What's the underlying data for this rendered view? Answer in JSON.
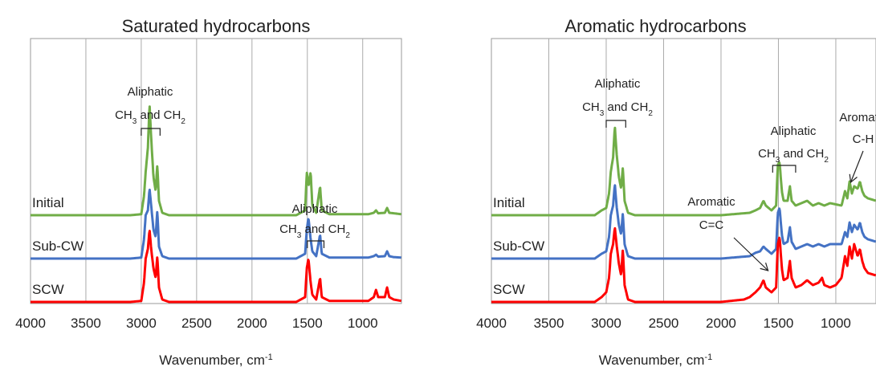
{
  "chart_data": [
    {
      "type": "line",
      "title": "Saturated hydrocarbons",
      "xlabel": "Wavenumber, cm",
      "xlabel_sup": "-1",
      "xlim": [
        4000,
        650
      ],
      "xticks": [
        4000,
        3500,
        3000,
        2500,
        2000,
        1500,
        1000
      ],
      "x_reversed": true,
      "y_axis_shown": false,
      "grid": "vertical",
      "legend": "labels at left of each trace",
      "series": [
        {
          "name": "Initial",
          "color": "#70ad47",
          "offset": 2.0,
          "points": [
            [
              4000,
              0
            ],
            [
              3100,
              0
            ],
            [
              3000,
              0.02
            ],
            [
              2975,
              0.4
            ],
            [
              2960,
              0.9
            ],
            [
              2940,
              1.4
            ],
            [
              2925,
              2.3
            ],
            [
              2910,
              1.6
            ],
            [
              2890,
              0.8
            ],
            [
              2870,
              0.5
            ],
            [
              2855,
              1.05
            ],
            [
              2840,
              0.3
            ],
            [
              2810,
              0.05
            ],
            [
              2750,
              0
            ],
            [
              1600,
              0
            ],
            [
              1520,
              0.1
            ],
            [
              1505,
              0.9
            ],
            [
              1490,
              0.6
            ],
            [
              1470,
              0.9
            ],
            [
              1455,
              0.2
            ],
            [
              1420,
              0.05
            ],
            [
              1385,
              0.6
            ],
            [
              1370,
              0.1
            ],
            [
              1300,
              0.02
            ],
            [
              950,
              0.02
            ],
            [
              900,
              0.05
            ],
            [
              880,
              0.1
            ],
            [
              860,
              0.04
            ],
            [
              800,
              0.05
            ],
            [
              780,
              0.15
            ],
            [
              760,
              0.05
            ],
            [
              720,
              0.04
            ],
            [
              650,
              0.02
            ]
          ]
        },
        {
          "name": "Sub-CW",
          "color": "#4472c4",
          "offset": 1.0,
          "points": [
            [
              4000,
              0
            ],
            [
              3100,
              0
            ],
            [
              3000,
              0.02
            ],
            [
              2975,
              0.4
            ],
            [
              2960,
              0.9
            ],
            [
              2940,
              1.0
            ],
            [
              2925,
              1.45
            ],
            [
              2910,
              1.1
            ],
            [
              2890,
              0.6
            ],
            [
              2870,
              0.45
            ],
            [
              2855,
              1.0
            ],
            [
              2840,
              0.25
            ],
            [
              2810,
              0.05
            ],
            [
              2750,
              0
            ],
            [
              1600,
              0
            ],
            [
              1520,
              0.1
            ],
            [
              1505,
              0.6
            ],
            [
              1490,
              0.85
            ],
            [
              1470,
              0.4
            ],
            [
              1455,
              0.15
            ],
            [
              1420,
              0.05
            ],
            [
              1385,
              0.5
            ],
            [
              1370,
              0.1
            ],
            [
              1300,
              0.02
            ],
            [
              950,
              0.02
            ],
            [
              900,
              0.05
            ],
            [
              880,
              0.08
            ],
            [
              860,
              0.04
            ],
            [
              800,
              0.05
            ],
            [
              780,
              0.15
            ],
            [
              760,
              0.05
            ],
            [
              720,
              0.03
            ],
            [
              650,
              0.02
            ]
          ]
        },
        {
          "name": "SCW",
          "color": "#ff0000",
          "offset": 0.0,
          "points": [
            [
              4000,
              0
            ],
            [
              3100,
              0
            ],
            [
              3000,
              0.02
            ],
            [
              2975,
              0.4
            ],
            [
              2960,
              0.9
            ],
            [
              2940,
              1.1
            ],
            [
              2925,
              1.5
            ],
            [
              2910,
              1.1
            ],
            [
              2890,
              0.7
            ],
            [
              2870,
              0.5
            ],
            [
              2855,
              0.95
            ],
            [
              2840,
              0.3
            ],
            [
              2810,
              0.05
            ],
            [
              2750,
              0
            ],
            [
              1600,
              0
            ],
            [
              1520,
              0.1
            ],
            [
              1505,
              0.7
            ],
            [
              1490,
              0.9
            ],
            [
              1470,
              0.4
            ],
            [
              1455,
              0.15
            ],
            [
              1420,
              0.05
            ],
            [
              1385,
              0.5
            ],
            [
              1370,
              0.1
            ],
            [
              1300,
              0.02
            ],
            [
              950,
              0.02
            ],
            [
              900,
              0.1
            ],
            [
              880,
              0.25
            ],
            [
              860,
              0.1
            ],
            [
              800,
              0.1
            ],
            [
              780,
              0.3
            ],
            [
              760,
              0.1
            ],
            [
              720,
              0.05
            ],
            [
              650,
              0.02
            ]
          ]
        }
      ],
      "annotations": [
        {
          "id": "aliphatic-1",
          "line1": "Aliphatic",
          "line2": {
            "a": "CH",
            "a_sub": "3",
            "b": " and CH",
            "b_sub": "2"
          },
          "bracket": [
            3000,
            2830
          ]
        },
        {
          "id": "aliphatic-2",
          "line1": "Aliphatic",
          "line2": {
            "a": "CH",
            "a_sub": "3",
            "b": " and CH",
            "b_sub": "2"
          },
          "bracket": [
            1500,
            1350
          ]
        }
      ]
    },
    {
      "type": "line",
      "title": "Aromatic hydrocarbons",
      "xlabel": "Wavenumber, cm",
      "xlabel_sup": "-1",
      "xlim": [
        4000,
        650
      ],
      "xticks": [
        4000,
        3500,
        3000,
        2500,
        2000,
        1500,
        1000
      ],
      "x_reversed": true,
      "y_axis_shown": false,
      "grid": "vertical",
      "legend": "labels at left of each trace",
      "series": [
        {
          "name": "Initial",
          "color": "#70ad47",
          "offset": 2.0,
          "points": [
            [
              4000,
              0
            ],
            [
              3100,
              0
            ],
            [
              3040,
              0.1
            ],
            [
              3000,
              0.15
            ],
            [
              2975,
              0.45
            ],
            [
              2960,
              0.9
            ],
            [
              2940,
              1.2
            ],
            [
              2925,
              1.85
            ],
            [
              2910,
              1.3
            ],
            [
              2890,
              0.8
            ],
            [
              2870,
              0.55
            ],
            [
              2855,
              1.0
            ],
            [
              2840,
              0.3
            ],
            [
              2810,
              0.05
            ],
            [
              2750,
              0
            ],
            [
              2000,
              0
            ],
            [
              1750,
              0.05
            ],
            [
              1700,
              0.1
            ],
            [
              1660,
              0.15
            ],
            [
              1630,
              0.3
            ],
            [
              1610,
              0.2
            ],
            [
              1560,
              0.1
            ],
            [
              1520,
              0.2
            ],
            [
              1505,
              1.05
            ],
            [
              1490,
              1.1
            ],
            [
              1470,
              0.5
            ],
            [
              1455,
              0.3
            ],
            [
              1420,
              0.3
            ],
            [
              1400,
              0.6
            ],
            [
              1385,
              0.3
            ],
            [
              1350,
              0.2
            ],
            [
              1300,
              0.25
            ],
            [
              1250,
              0.3
            ],
            [
              1200,
              0.2
            ],
            [
              1150,
              0.25
            ],
            [
              1100,
              0.2
            ],
            [
              1050,
              0.25
            ],
            [
              950,
              0.2
            ],
            [
              920,
              0.5
            ],
            [
              900,
              0.35
            ],
            [
              880,
              0.7
            ],
            [
              860,
              0.45
            ],
            [
              840,
              0.6
            ],
            [
              810,
              0.55
            ],
            [
              790,
              0.7
            ],
            [
              770,
              0.5
            ],
            [
              750,
              0.4
            ],
            [
              720,
              0.35
            ],
            [
              650,
              0.3
            ]
          ]
        },
        {
          "name": "Sub-CW",
          "color": "#4472c4",
          "offset": 1.0,
          "points": [
            [
              4000,
              0
            ],
            [
              3100,
              0
            ],
            [
              3040,
              0.1
            ],
            [
              3000,
              0.15
            ],
            [
              2975,
              0.45
            ],
            [
              2960,
              0.9
            ],
            [
              2940,
              1.1
            ],
            [
              2925,
              1.55
            ],
            [
              2910,
              1.1
            ],
            [
              2890,
              0.7
            ],
            [
              2870,
              0.5
            ],
            [
              2855,
              0.95
            ],
            [
              2840,
              0.3
            ],
            [
              2810,
              0.05
            ],
            [
              2750,
              0
            ],
            [
              2000,
              0
            ],
            [
              1750,
              0.05
            ],
            [
              1700,
              0.12
            ],
            [
              1660,
              0.15
            ],
            [
              1630,
              0.25
            ],
            [
              1610,
              0.2
            ],
            [
              1560,
              0.1
            ],
            [
              1520,
              0.2
            ],
            [
              1505,
              0.95
            ],
            [
              1490,
              1.05
            ],
            [
              1470,
              0.5
            ],
            [
              1455,
              0.3
            ],
            [
              1420,
              0.35
            ],
            [
              1400,
              0.65
            ],
            [
              1385,
              0.35
            ],
            [
              1350,
              0.2
            ],
            [
              1300,
              0.25
            ],
            [
              1250,
              0.3
            ],
            [
              1200,
              0.25
            ],
            [
              1150,
              0.3
            ],
            [
              1100,
              0.25
            ],
            [
              1050,
              0.3
            ],
            [
              950,
              0.3
            ],
            [
              920,
              0.55
            ],
            [
              900,
              0.45
            ],
            [
              880,
              0.75
            ],
            [
              860,
              0.55
            ],
            [
              840,
              0.7
            ],
            [
              810,
              0.6
            ],
            [
              790,
              0.75
            ],
            [
              770,
              0.55
            ],
            [
              750,
              0.45
            ],
            [
              720,
              0.4
            ],
            [
              650,
              0.35
            ]
          ]
        },
        {
          "name": "SCW",
          "color": "#ff0000",
          "offset": 0.0,
          "points": [
            [
              4000,
              0
            ],
            [
              3100,
              0
            ],
            [
              3040,
              0.1
            ],
            [
              3000,
              0.2
            ],
            [
              2975,
              0.5
            ],
            [
              2960,
              1.0
            ],
            [
              2940,
              1.2
            ],
            [
              2925,
              1.55
            ],
            [
              2910,
              1.2
            ],
            [
              2890,
              0.8
            ],
            [
              2870,
              0.55
            ],
            [
              2855,
              1.1
            ],
            [
              2840,
              0.35
            ],
            [
              2810,
              0.05
            ],
            [
              2750,
              0
            ],
            [
              2000,
              0
            ],
            [
              1800,
              0.05
            ],
            [
              1750,
              0.1
            ],
            [
              1700,
              0.2
            ],
            [
              1660,
              0.3
            ],
            [
              1630,
              0.45
            ],
            [
              1610,
              0.3
            ],
            [
              1560,
              0.2
            ],
            [
              1520,
              0.3
            ],
            [
              1505,
              1.2
            ],
            [
              1490,
              1.35
            ],
            [
              1470,
              0.7
            ],
            [
              1455,
              0.45
            ],
            [
              1420,
              0.5
            ],
            [
              1400,
              0.85
            ],
            [
              1385,
              0.5
            ],
            [
              1350,
              0.3
            ],
            [
              1300,
              0.35
            ],
            [
              1250,
              0.45
            ],
            [
              1200,
              0.35
            ],
            [
              1150,
              0.4
            ],
            [
              1120,
              0.5
            ],
            [
              1100,
              0.35
            ],
            [
              1050,
              0.3
            ],
            [
              1000,
              0.35
            ],
            [
              950,
              0.5
            ],
            [
              920,
              0.95
            ],
            [
              900,
              0.75
            ],
            [
              880,
              1.15
            ],
            [
              860,
              0.9
            ],
            [
              840,
              1.2
            ],
            [
              810,
              0.95
            ],
            [
              790,
              1.1
            ],
            [
              770,
              0.85
            ],
            [
              750,
              0.7
            ],
            [
              720,
              0.6
            ],
            [
              650,
              0.55
            ]
          ]
        }
      ],
      "annotations": [
        {
          "id": "aliphatic-1",
          "line1": "Aliphatic",
          "line2": {
            "a": "CH",
            "a_sub": "3",
            "b": " and CH",
            "b_sub": "2"
          },
          "bracket": [
            3000,
            2830
          ]
        },
        {
          "id": "aliphatic-2",
          "line1": "Aliphatic",
          "line2": {
            "a": "CH",
            "a_sub": "3",
            "b": " and CH",
            "b_sub": "2"
          },
          "bracket": [
            1550,
            1350
          ]
        },
        {
          "id": "aromatic-cc",
          "line1": "Aromatic",
          "line2": {
            "a": "C=C"
          },
          "arrow_to": 1590
        },
        {
          "id": "aromatic-ch",
          "line1": "Aromatic",
          "line2": {
            "a": "C-H"
          },
          "arrow_to": 870
        }
      ]
    }
  ]
}
